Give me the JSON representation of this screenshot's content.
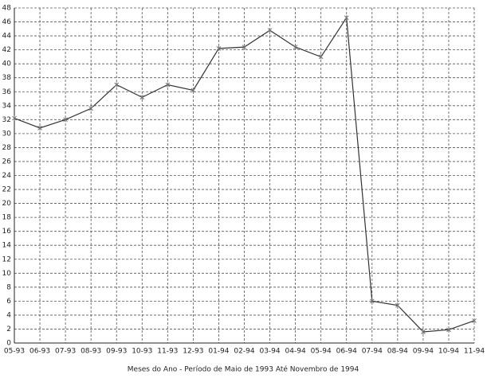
{
  "chart_data": {
    "type": "line",
    "x_label": "Meses do Ano - Período de Maio de 1993 Até Novembro de 1994",
    "categories": [
      "05-93",
      "06-93",
      "07-93",
      "08-93",
      "09-93",
      "10-93",
      "11-93",
      "12-93",
      "01-94",
      "02-94",
      "03-94",
      "04-94",
      "05-94",
      "06-94",
      "07-94",
      "08-94",
      "09-94",
      "10-94",
      "11-94"
    ],
    "series": [
      {
        "color": "#333333",
        "values": [
          32.2,
          30.8,
          32.0,
          33.6,
          37.0,
          35.2,
          37.0,
          36.2,
          42.2,
          42.4,
          44.8,
          42.4,
          41.0,
          46.6,
          6.0,
          5.4,
          1.6,
          1.9,
          3.2
        ]
      }
    ],
    "ylim": [
      0,
      48
    ],
    "yticks": [
      0,
      2,
      4,
      6,
      8,
      10,
      12,
      14,
      16,
      18,
      20,
      22,
      24,
      26,
      28,
      30,
      32,
      34,
      36,
      38,
      40,
      42,
      44,
      46,
      48
    ],
    "grid": true
  }
}
